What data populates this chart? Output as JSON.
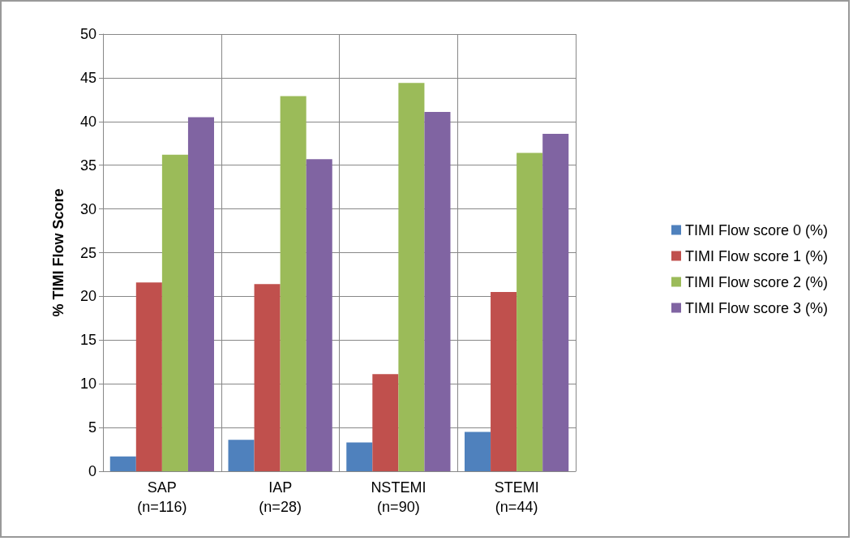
{
  "chart_data": {
    "type": "bar",
    "ylabel": "% TIMI Flow Score",
    "categories": [
      "SAP\n(n=116)",
      "IAP\n(n=28)",
      "NSTEMI\n(n=90)",
      "STEMI\n(n=44)"
    ],
    "series": [
      {
        "name": "TIMI Flow score 0 (%)",
        "color": "#4f81bd",
        "values": [
          1.7,
          3.6,
          3.3,
          4.5
        ]
      },
      {
        "name": "TIMI Flow score 1 (%)",
        "color": "#c0504d",
        "values": [
          21.6,
          21.4,
          11.1,
          20.5
        ]
      },
      {
        "name": "TIMI Flow score 2 (%)",
        "color": "#9bbb59",
        "values": [
          36.2,
          42.9,
          44.4,
          36.4
        ]
      },
      {
        "name": "TIMI Flow score 3 (%)",
        "color": "#8064a2",
        "values": [
          40.5,
          35.7,
          41.1,
          38.6
        ]
      }
    ],
    "ylim": [
      0,
      50
    ],
    "yticks": [
      0,
      5,
      10,
      15,
      20,
      25,
      30,
      35,
      40,
      45,
      50
    ],
    "grid": true,
    "legend": "right"
  }
}
